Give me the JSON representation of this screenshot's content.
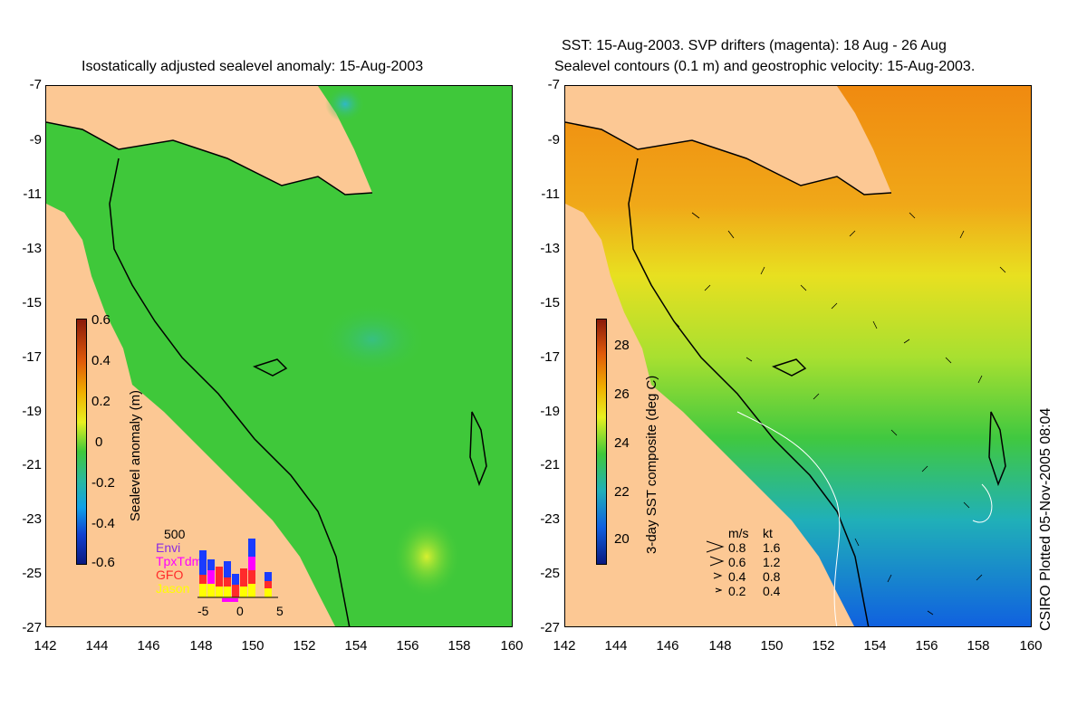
{
  "left_panel": {
    "title": "Isostatically adjusted sealevel anomaly: 15-Aug-2003",
    "colorbar_label": "Sealevel anomaly (m)",
    "colorbar_ticks": [
      "0.6",
      "0.4",
      "0.2",
      "0",
      "-0.2",
      "-0.4",
      "-0.6"
    ],
    "mission_legend": {
      "max_count": "500",
      "missions": [
        {
          "name": "Envi",
          "color": "#8a2be2"
        },
        {
          "name": "TpxTdm",
          "color": "#ff00ff"
        },
        {
          "name": "GFO",
          "color": "#ff2a2a"
        },
        {
          "name": "Jason",
          "color": "#ffff00"
        }
      ],
      "axis_ticks": [
        "-5",
        "0",
        "5"
      ]
    }
  },
  "right_panel": {
    "title_line1": "SST: 15-Aug-2003. SVP drifters (magenta): 18 Aug - 26 Aug",
    "title_line2": "Sealevel contours (0.1 m) and geostrophic velocity: 15-Aug-2003.",
    "colorbar_label": "3-day SST composite (deg C)",
    "colorbar_ticks": [
      "28",
      "26",
      "24",
      "22",
      "20"
    ],
    "velocity_legend": {
      "header_ms": "m/s",
      "header_kt": "kt",
      "rows": [
        {
          "ms": "0.8",
          "kt": "1.6",
          "arrow": "arrow-large"
        },
        {
          "ms": "0.6",
          "kt": "1.2",
          "arrow": "arrow-medium"
        },
        {
          "ms": "0.4",
          "kt": "0.8",
          "arrow": "arrow-small"
        },
        {
          "ms": "0.2",
          "kt": "0.4",
          "arrow": "arrow-tiny"
        }
      ]
    }
  },
  "axes": {
    "y_ticks": [
      "-7",
      "-9",
      "-11",
      "-13",
      "-15",
      "-17",
      "-19",
      "-21",
      "-23",
      "-25",
      "-27"
    ],
    "x_ticks": [
      "142",
      "144",
      "146",
      "148",
      "150",
      "152",
      "154",
      "156",
      "158",
      "160"
    ]
  },
  "credit": "CSIRO Plotted 05-Nov-2005 08:04",
  "colors": {
    "land": "#fcc894",
    "sla_ocean": "#3fc83a",
    "coast": "#000000"
  }
}
